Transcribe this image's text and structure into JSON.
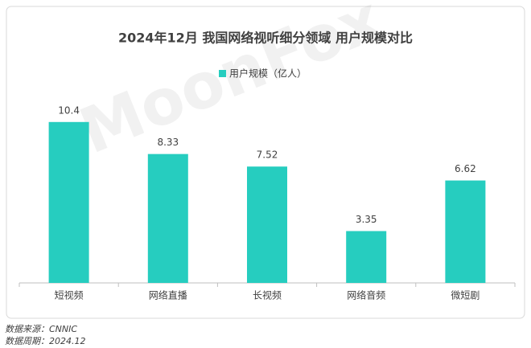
{
  "chart_data": {
    "type": "bar",
    "title": "2024年12月 我国网络视听细分领域 用户规模对比",
    "categories": [
      "短视频",
      "网络直播",
      "长视频",
      "网络音频",
      "微短剧"
    ],
    "series": [
      {
        "name": "用户规模（亿人）",
        "color": "#26cdbf",
        "values": [
          10.4,
          8.33,
          7.52,
          3.35,
          6.62
        ]
      }
    ],
    "ylim": [
      0,
      12
    ],
    "watermark": "MoonFox",
    "source": "数据来源：CNNIC",
    "period": "数据周期：2024.12"
  }
}
